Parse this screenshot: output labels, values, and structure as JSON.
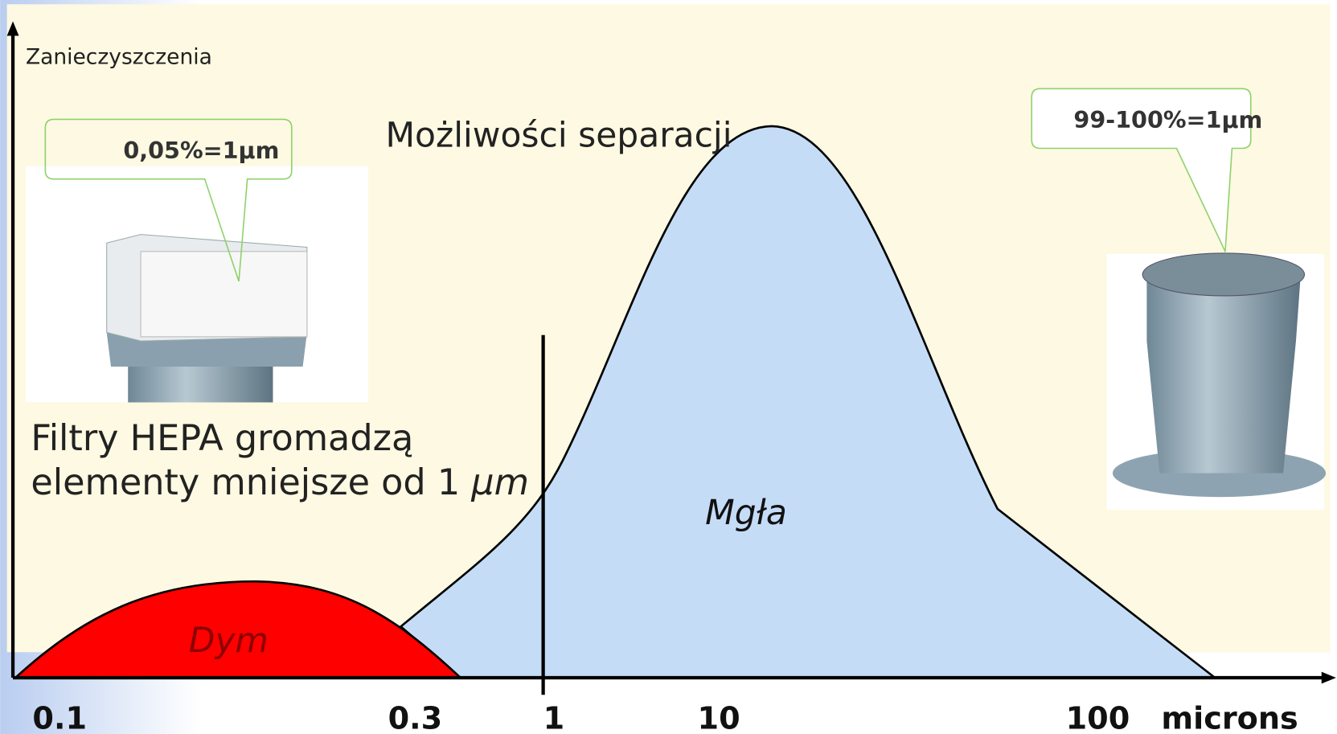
{
  "axis": {
    "y_label": "Zanieczyszczenia",
    "x_labels": [
      "0.1",
      "0.3",
      "1",
      "10",
      "100"
    ],
    "x_unit": "microns"
  },
  "title": "Możliwości separacji",
  "callouts": [
    {
      "label": "0,05%=1µm"
    },
    {
      "label": "99-100%=1µm"
    }
  ],
  "note": {
    "line1": "Filtry HEPA gromadzą",
    "line2": "elementy mniejsze od 1 ",
    "unit": "µm"
  },
  "regions": [
    {
      "label": "Dym"
    },
    {
      "label": "Mgła"
    }
  ]
}
